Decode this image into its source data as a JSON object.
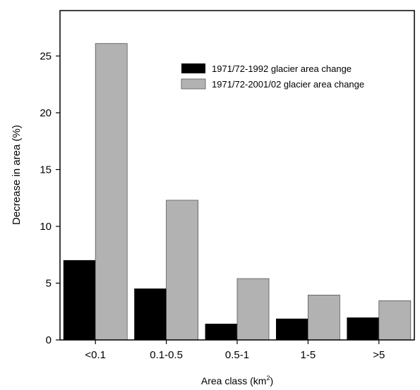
{
  "chart_data": {
    "type": "bar",
    "title": "",
    "xlabel": "Area class (km",
    "xlabel_sup": "2",
    "xlabel_close": ")",
    "ylabel": "Decrease in area (%)",
    "categories": [
      "<0.1",
      "0.1-0.5",
      "0.5-1",
      "1-5",
      ">5"
    ],
    "yticks": [
      "0",
      "5",
      "10",
      "15",
      "20",
      "25"
    ],
    "ylim": [
      0,
      29
    ],
    "grid": false,
    "legend_position": "top-right",
    "series": [
      {
        "name": "1971/72-1992 glacier area change",
        "color": "#000000",
        "values": [
          7.0,
          4.5,
          1.4,
          1.85,
          1.95
        ]
      },
      {
        "name": "1971/72-2001/02 glacier area  change",
        "color": "#b2b2b2",
        "values": [
          26.1,
          12.3,
          5.4,
          3.95,
          3.45
        ]
      }
    ]
  }
}
